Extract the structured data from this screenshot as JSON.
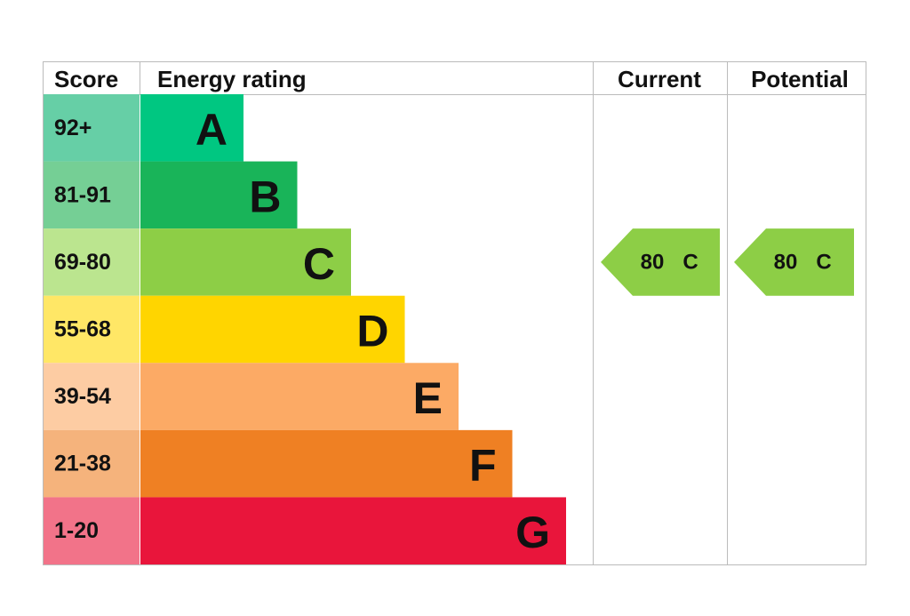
{
  "headers": {
    "score": "Score",
    "rating": "Energy rating",
    "current": "Current",
    "potential": "Potential"
  },
  "bands": [
    {
      "score": "92+",
      "letter": "A",
      "color": "#00c781",
      "score_color": "#66cfa6"
    },
    {
      "score": "81-91",
      "letter": "B",
      "color": "#19b459",
      "score_color": "#75cf95"
    },
    {
      "score": "69-80",
      "letter": "C",
      "color": "#8dce46",
      "score_color": "#bbe58f"
    },
    {
      "score": "55-68",
      "letter": "D",
      "color": "#ffd500",
      "score_color": "#ffe766"
    },
    {
      "score": "39-54",
      "letter": "E",
      "color": "#fcaa65",
      "score_color": "#fdcca3"
    },
    {
      "score": "21-38",
      "letter": "F",
      "color": "#ef8023",
      "score_color": "#f5b37c"
    },
    {
      "score": "1-20",
      "letter": "G",
      "color": "#e9153b",
      "score_color": "#f27389"
    }
  ],
  "current": {
    "value": 80,
    "rating": "C"
  },
  "potential": {
    "value": 80,
    "rating": "C"
  }
}
